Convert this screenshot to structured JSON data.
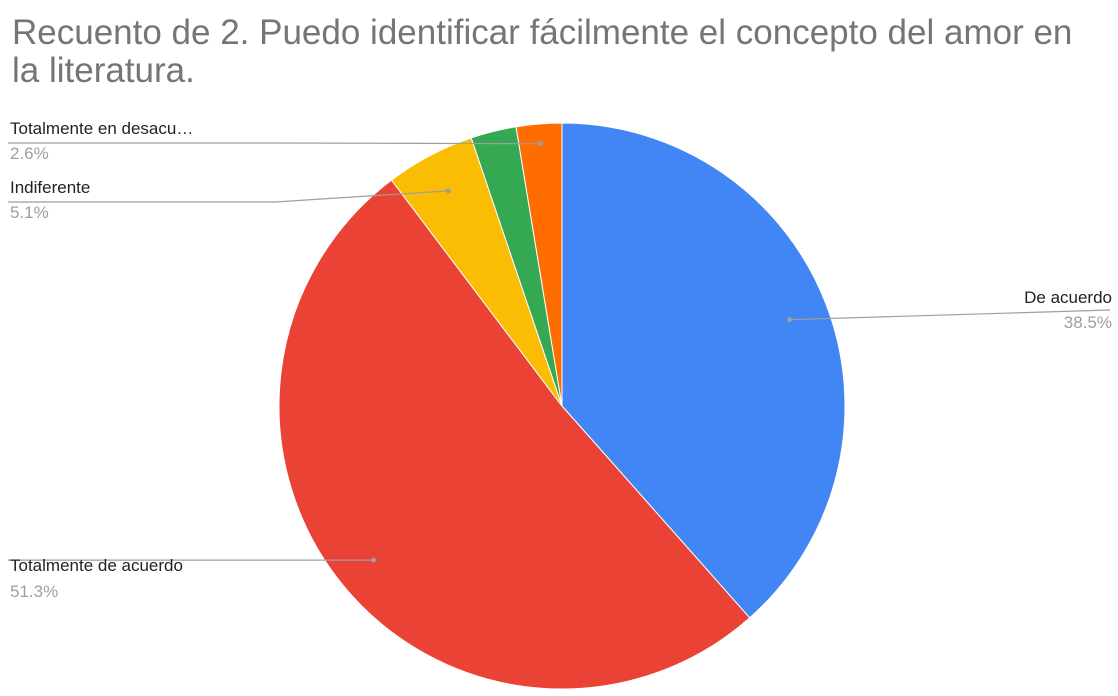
{
  "title": "Recuento de 2. Puedo identificar fácilmente el concepto del amor en la literatura.",
  "chart_data": {
    "type": "pie",
    "title": "Recuento de 2. Puedo identificar fácilmente el concepto del amor en la literatura.",
    "slices": [
      {
        "label": "De acuerdo",
        "display_label": "De acuerdo",
        "value": 38.5,
        "pct_label": "38.5%",
        "color": "#4285F4"
      },
      {
        "label": "Totalmente de acuerdo",
        "display_label": "Totalmente de acuerdo",
        "value": 51.3,
        "pct_label": "51.3%",
        "color": "#EA4335"
      },
      {
        "label": "Indiferente",
        "display_label": "Indiferente",
        "value": 5.1,
        "pct_label": "5.1%",
        "color": "#FBBC04"
      },
      {
        "label": "Totalmente en desacuerdo",
        "display_label": "",
        "value": 2.6,
        "pct_label": "",
        "color": "#34A853"
      },
      {
        "label": "Totalmente en desacuerdo",
        "display_label": "Totalmente en desacu…",
        "value": 2.6,
        "pct_label": "2.6%",
        "color": "#FF6D01"
      }
    ]
  }
}
